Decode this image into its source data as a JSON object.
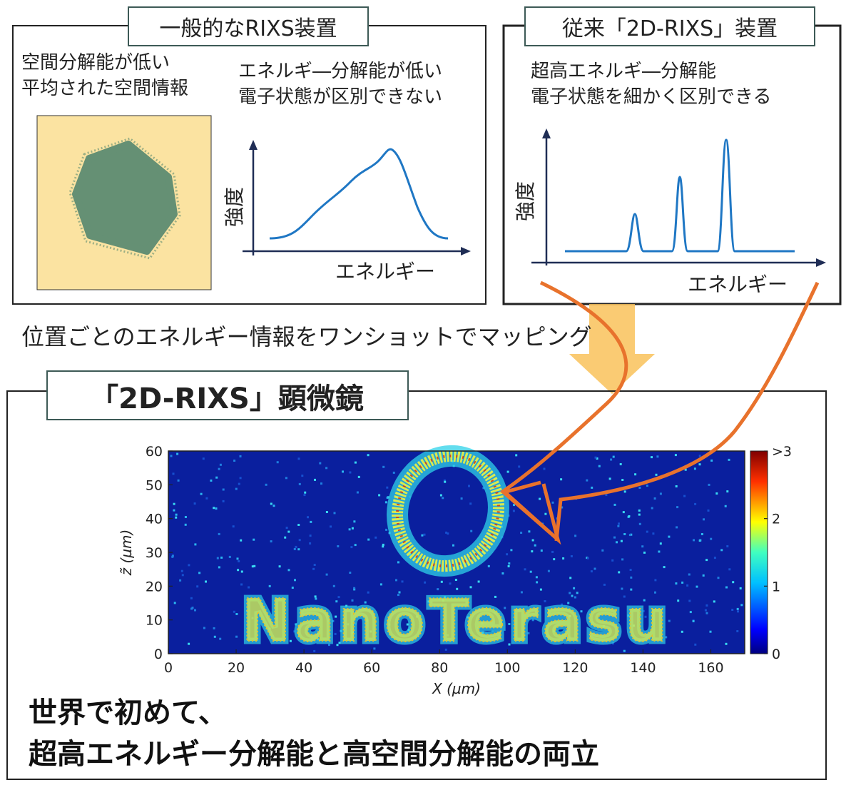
{
  "panel_left": {
    "title": "一般的なRIXS装置",
    "note_spatial_1": "空間分解能が低い",
    "note_spatial_2": "平均された空間情報",
    "note_energy_1": "エネルギ―分解能が低い",
    "note_energy_2": "電子状態が区別できない",
    "ylabel": "強度",
    "xlabel": "エネルギー"
  },
  "panel_right": {
    "title": "従来「2D-RIXS」装置",
    "note_1": "超高エネルギ―分解能",
    "note_2": "電子状態を細かく区別できる",
    "ylabel": "強度",
    "xlabel": "エネルギー"
  },
  "middle_caption": "位置ごとのエネルギー情報をワンショットでマッピング",
  "panel_bottom": {
    "title": "「2D-RIXS」顕微鏡",
    "conclusion_1": "世界で初めて、",
    "conclusion_2": "超高エネルギー分解能と高空間分解能の両立"
  },
  "chart_data": {
    "type": "heatmap",
    "xlabel": "X (µm)",
    "ylabel": "z̃ (µm)",
    "xlim": [
      0,
      170
    ],
    "ylim": [
      0,
      60
    ],
    "x_ticks": [
      0,
      20,
      40,
      60,
      80,
      100,
      120,
      140,
      160
    ],
    "y_ticks": [
      0,
      10,
      20,
      30,
      40,
      50,
      60
    ],
    "colorbar_ticks": [
      "0",
      "1",
      "2",
      ">3"
    ],
    "colorbar_range": [
      0,
      3
    ],
    "image_text": "NanoTerasu"
  },
  "colors": {
    "accent_line": "#1f77c4",
    "arrow_orange": "#e8722c",
    "big_arrow": "#f9c25a",
    "beige": "#fbe3a1",
    "green_spot": "#5d8c72",
    "box_border": "#3d5a56"
  }
}
